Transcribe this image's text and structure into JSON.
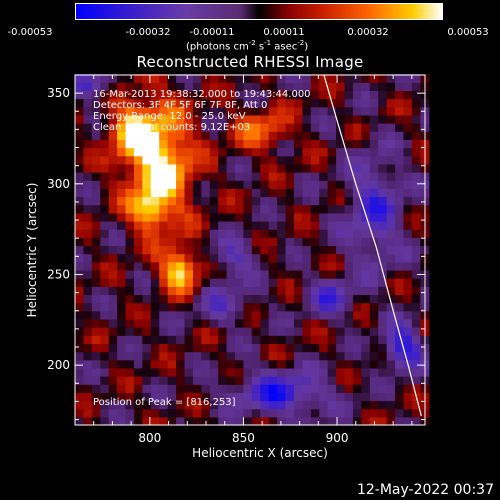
{
  "colorbar": {
    "ticks": [
      "-0.00053",
      "-0.00032",
      "-0.00011",
      "0.00011",
      "0.00032",
      "0.00053"
    ],
    "units_main": "(photons cm",
    "units_sup1": "-2",
    "units_mid": " s",
    "units_sup2": "-1",
    "units_mid2": " asec",
    "units_sup3": "-2",
    "units_end": ")"
  },
  "chart_data": {
    "type": "heatmap",
    "title": "Reconstructed RHESSI Image",
    "xlabel": "Heliocentric X (arcsec)",
    "ylabel": "Heliocentric Y (arcsec)",
    "xlim": [
      760,
      947
    ],
    "ylim": [
      167,
      360
    ],
    "x_ticks": [
      800,
      850,
      900
    ],
    "y_ticks": [
      200,
      250,
      300,
      350
    ],
    "x_tick_labels": [
      "800",
      "850",
      "900"
    ],
    "y_tick_labels": [
      "200",
      "250",
      "300",
      "350"
    ],
    "color_range": [
      -0.00053,
      0.00053
    ],
    "peak": [
      816,
      253
    ],
    "limb_points": [
      [
        893,
        360
      ],
      [
        900,
        335
      ],
      [
        910,
        300
      ],
      [
        921,
        265
      ],
      [
        930,
        230
      ],
      [
        938,
        200
      ],
      [
        945,
        172
      ]
    ],
    "bright_regions": [
      {
        "x": 805,
        "y": 312,
        "rx": 18,
        "ry": 32,
        "level": 0.00053
      },
      {
        "x": 816,
        "y": 253,
        "rx": 10,
        "ry": 12,
        "level": 0.0005
      },
      {
        "x": 790,
        "y": 330,
        "rx": 12,
        "ry": 15,
        "level": 0.00035
      },
      {
        "x": 860,
        "y": 330,
        "rx": 15,
        "ry": 12,
        "level": 0.00028
      },
      {
        "x": 800,
        "y": 285,
        "rx": 10,
        "ry": 10,
        "level": 0.00032
      }
    ],
    "dark_regions": [
      {
        "x": 770,
        "y": 355,
        "rx": 10,
        "ry": 8,
        "level": -0.0003
      },
      {
        "x": 920,
        "y": 285,
        "rx": 15,
        "ry": 30,
        "level": -0.00032
      },
      {
        "x": 897,
        "y": 238,
        "rx": 12,
        "ry": 10,
        "level": -0.0003
      },
      {
        "x": 870,
        "y": 185,
        "rx": 25,
        "ry": 12,
        "level": -0.0004
      },
      {
        "x": 935,
        "y": 210,
        "rx": 10,
        "ry": 12,
        "level": -0.00045
      },
      {
        "x": 845,
        "y": 260,
        "rx": 12,
        "ry": 10,
        "level": -0.00025
      },
      {
        "x": 840,
        "y": 235,
        "rx": 15,
        "ry": 12,
        "level": -0.0002
      }
    ]
  },
  "info": {
    "line1": "16-Mar-2013 19:38:32.000 to 19:43:44.000",
    "line2": "Detectors: 3F 4F 5F 6F 7F 8F, Att 0",
    "line3": "Energy Range: 12.0 - 25.0 keV",
    "line4": "Clean    Total counts: 9.12E+03",
    "peak_label": "Position of Peak = [816,253]"
  },
  "footer": "12-May-2022 00:37"
}
